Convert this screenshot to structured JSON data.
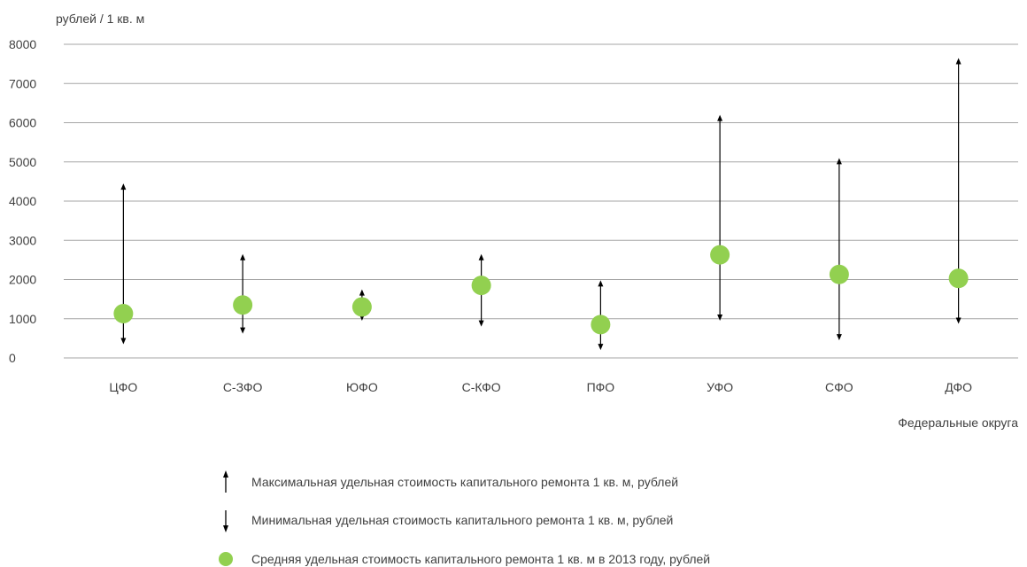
{
  "colors": {
    "grid": "#a6a6a6",
    "arrow": "#000000",
    "marker": "#92d050",
    "text": "#404040"
  },
  "chart_data": {
    "type": "scatter",
    "ylabel": "рублей  / 1 кв. м",
    "xlabel": "Федеральные округа",
    "ylim": [
      0,
      8000
    ],
    "yticks": [
      0,
      1000,
      2000,
      3000,
      4000,
      5000,
      6000,
      7000,
      8000
    ],
    "grid": true,
    "legend_position": "bottom",
    "categories": [
      "ЦФО",
      "С-ЗФО",
      "ЮФО",
      "С-КФО",
      "ПФО",
      "УФО",
      "СФО",
      "ДФО"
    ],
    "series": [
      {
        "name": "Максимальная удельная  стоимость  капитального  ремонта  1 кв. м, рублей",
        "marker": "up-arrow",
        "values": [
          4450,
          2650,
          1750,
          2650,
          1980,
          6200,
          5100,
          7650
        ]
      },
      {
        "name": "Минимальная  удельная  стоимость  капитального  ремонта  1 кв. м, рублей",
        "marker": "down-arrow",
        "values": [
          350,
          620,
          950,
          800,
          200,
          950,
          450,
          870
        ]
      },
      {
        "name": "Средняя удельная  стоимость  капитального  ремонта  1 кв. м в 2013 году, рублей",
        "marker": "circle",
        "values": [
          1130,
          1350,
          1300,
          1850,
          850,
          2630,
          2130,
          2030
        ]
      }
    ]
  }
}
